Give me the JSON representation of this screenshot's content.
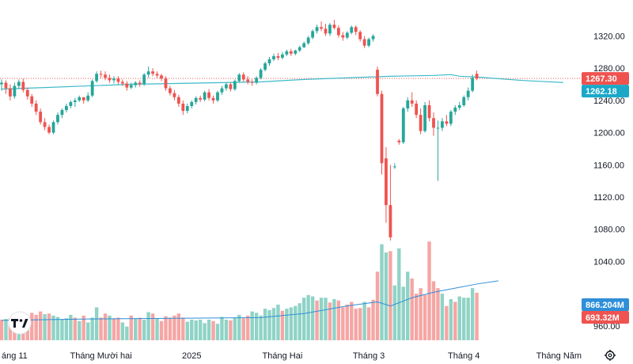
{
  "chart_data": {
    "type": "candlestick",
    "title": "",
    "grid": false,
    "y_axis": {
      "range": [
        950,
        1345
      ],
      "ticks": [
        960,
        1040,
        1080,
        1120,
        1160,
        1200,
        1240,
        1280,
        1320
      ]
    },
    "x_axis": {
      "labels": [
        {
          "index": 3,
          "text": "áng 11"
        },
        {
          "index": 23,
          "text": "Tháng Mười hai"
        },
        {
          "index": 44,
          "text": "2025"
        },
        {
          "index": 65,
          "text": "Tháng Hai"
        },
        {
          "index": 85,
          "text": "Tháng 3"
        },
        {
          "index": 107,
          "text": "Tháng 4"
        },
        {
          "index": 129,
          "text": "Tháng Năm"
        }
      ]
    },
    "price_scale": {
      "data_top": 1345,
      "data_bottom": 1065,
      "view_top": 1345,
      "view_bottom": 950
    },
    "volume_scale": {
      "max": 1500
    },
    "last_price": 1267.3,
    "moving_average_value": 1262.18,
    "volume_last": "693.32M",
    "volume_ma_last": "866.204M",
    "colors": {
      "up": "#26a69a",
      "down": "#ef5350",
      "ma": "#3cbac8",
      "vol_up": "#8fd3c6",
      "vol_down": "#f5a6a4",
      "vol_ma": "#2f8fd8"
    },
    "candles": [
      [
        1260,
        1266,
        1252,
        1262
      ],
      [
        1262,
        1265,
        1248,
        1255
      ],
      [
        1255,
        1260,
        1240,
        1245
      ],
      [
        1245,
        1262,
        1242,
        1258
      ],
      [
        1258,
        1266,
        1254,
        1263
      ],
      [
        1263,
        1267,
        1250,
        1253
      ],
      [
        1253,
        1256,
        1241,
        1245
      ],
      [
        1245,
        1248,
        1232,
        1236
      ],
      [
        1236,
        1240,
        1222,
        1226
      ],
      [
        1226,
        1230,
        1210,
        1213
      ],
      [
        1213,
        1218,
        1203,
        1207
      ],
      [
        1207,
        1210,
        1198,
        1200
      ],
      [
        1200,
        1215,
        1198,
        1213
      ],
      [
        1213,
        1225,
        1210,
        1222
      ],
      [
        1222,
        1230,
        1218,
        1228
      ],
      [
        1228,
        1236,
        1225,
        1233
      ],
      [
        1233,
        1240,
        1230,
        1238
      ],
      [
        1238,
        1243,
        1232,
        1240
      ],
      [
        1240,
        1246,
        1238,
        1244
      ],
      [
        1244,
        1244,
        1236,
        1240
      ],
      [
        1240,
        1250,
        1238,
        1246
      ],
      [
        1246,
        1266,
        1244,
        1264
      ],
      [
        1264,
        1276,
        1262,
        1273
      ],
      [
        1273,
        1277,
        1268,
        1272
      ],
      [
        1272,
        1276,
        1265,
        1268
      ],
      [
        1268,
        1272,
        1262,
        1265
      ],
      [
        1265,
        1270,
        1261,
        1267
      ],
      [
        1267,
        1270,
        1260,
        1263
      ],
      [
        1263,
        1266,
        1258,
        1261
      ],
      [
        1261,
        1264,
        1252,
        1256
      ],
      [
        1256,
        1262,
        1254,
        1259
      ],
      [
        1259,
        1264,
        1256,
        1262
      ],
      [
        1262,
        1265,
        1257,
        1260
      ],
      [
        1260,
        1274,
        1258,
        1272
      ],
      [
        1272,
        1282,
        1268,
        1276
      ],
      [
        1276,
        1280,
        1270,
        1273
      ],
      [
        1273,
        1276,
        1268,
        1271
      ],
      [
        1271,
        1273,
        1264,
        1267
      ],
      [
        1267,
        1270,
        1252,
        1255
      ],
      [
        1255,
        1258,
        1246,
        1249
      ],
      [
        1249,
        1253,
        1240,
        1244
      ],
      [
        1244,
        1247,
        1232,
        1236
      ],
      [
        1236,
        1240,
        1222,
        1227
      ],
      [
        1227,
        1236,
        1224,
        1233
      ],
      [
        1233,
        1240,
        1230,
        1238
      ],
      [
        1238,
        1245,
        1235,
        1243
      ],
      [
        1243,
        1246,
        1238,
        1241
      ],
      [
        1241,
        1252,
        1239,
        1250
      ],
      [
        1250,
        1254,
        1240,
        1243
      ],
      [
        1243,
        1246,
        1236,
        1240
      ],
      [
        1240,
        1252,
        1238,
        1250
      ],
      [
        1250,
        1258,
        1247,
        1255
      ],
      [
        1255,
        1262,
        1252,
        1260
      ],
      [
        1260,
        1262,
        1251,
        1254
      ],
      [
        1254,
        1266,
        1252,
        1264
      ],
      [
        1264,
        1274,
        1262,
        1272
      ],
      [
        1272,
        1275,
        1263,
        1266
      ],
      [
        1266,
        1270,
        1260,
        1263
      ],
      [
        1263,
        1266,
        1258,
        1262
      ],
      [
        1262,
        1270,
        1260,
        1268
      ],
      [
        1268,
        1280,
        1266,
        1278
      ],
      [
        1278,
        1288,
        1276,
        1286
      ],
      [
        1286,
        1294,
        1283,
        1291
      ],
      [
        1291,
        1298,
        1289,
        1295
      ],
      [
        1295,
        1299,
        1290,
        1293
      ],
      [
        1293,
        1300,
        1291,
        1297
      ],
      [
        1297,
        1303,
        1295,
        1301
      ],
      [
        1301,
        1304,
        1295,
        1298
      ],
      [
        1298,
        1303,
        1296,
        1302
      ],
      [
        1302,
        1308,
        1300,
        1306
      ],
      [
        1306,
        1313,
        1305,
        1311
      ],
      [
        1311,
        1320,
        1309,
        1318
      ],
      [
        1318,
        1328,
        1316,
        1326
      ],
      [
        1326,
        1334,
        1323,
        1331
      ],
      [
        1331,
        1338,
        1326,
        1329
      ],
      [
        1329,
        1335,
        1320,
        1323
      ],
      [
        1323,
        1336,
        1320,
        1334
      ],
      [
        1334,
        1340,
        1328,
        1330
      ],
      [
        1330,
        1333,
        1318,
        1321
      ],
      [
        1321,
        1325,
        1314,
        1318
      ],
      [
        1318,
        1326,
        1316,
        1324
      ],
      [
        1324,
        1333,
        1322,
        1331
      ],
      [
        1331,
        1333,
        1321,
        1325
      ],
      [
        1325,
        1327,
        1313,
        1316
      ],
      [
        1316,
        1320,
        1305,
        1308
      ],
      [
        1308,
        1318,
        1306,
        1316
      ],
      [
        1316,
        1322,
        1313,
        1320
      ],
      [
        1278,
        1282,
        1245,
        1248
      ],
      [
        1248,
        1252,
        1148,
        1162
      ],
      [
        1168,
        1182,
        1088,
        1110
      ],
      [
        1110,
        1160,
        1066,
        1070
      ],
      [
        1157,
        1162,
        1155,
        1158
      ],
      [
        1190,
        1192,
        1185,
        1188
      ],
      [
        1188,
        1232,
        1186,
        1230
      ],
      [
        1230,
        1244,
        1226,
        1240
      ],
      [
        1240,
        1250,
        1232,
        1236
      ],
      [
        1236,
        1240,
        1218,
        1222
      ],
      [
        1222,
        1230,
        1198,
        1202
      ],
      [
        1202,
        1238,
        1200,
        1234
      ],
      [
        1234,
        1240,
        1214,
        1218
      ],
      [
        1218,
        1225,
        1196,
        1206
      ],
      [
        1206,
        1215,
        1140,
        1206
      ],
      [
        1206,
        1218,
        1202,
        1214
      ],
      [
        1214,
        1222,
        1208,
        1211
      ],
      [
        1211,
        1228,
        1208,
        1226
      ],
      [
        1226,
        1234,
        1222,
        1231
      ],
      [
        1231,
        1238,
        1228,
        1234
      ],
      [
        1234,
        1246,
        1232,
        1244
      ],
      [
        1244,
        1256,
        1240,
        1252
      ],
      [
        1252,
        1272,
        1250,
        1268
      ],
      [
        1273,
        1277,
        1265,
        1267.3
      ]
    ],
    "ma_points": [
      [
        0,
        1254
      ],
      [
        10,
        1256
      ],
      [
        20,
        1258
      ],
      [
        30,
        1260
      ],
      [
        40,
        1261
      ],
      [
        50,
        1262
      ],
      [
        60,
        1263
      ],
      [
        70,
        1266
      ],
      [
        80,
        1268
      ],
      [
        90,
        1270
      ],
      [
        100,
        1271
      ],
      [
        104,
        1272
      ],
      [
        106,
        1270
      ],
      [
        110,
        1269
      ],
      [
        115,
        1267
      ],
      [
        120,
        1265
      ],
      [
        125,
        1263.5
      ],
      [
        130,
        1262.2
      ]
    ],
    "volumes": [
      [
        300,
        0
      ],
      [
        310,
        1
      ],
      [
        320,
        0
      ],
      [
        380,
        0
      ],
      [
        320,
        1
      ],
      [
        330,
        0
      ],
      [
        350,
        0
      ],
      [
        400,
        0
      ],
      [
        370,
        0
      ],
      [
        420,
        0
      ],
      [
        380,
        1
      ],
      [
        390,
        0
      ],
      [
        360,
        1
      ],
      [
        340,
        1
      ],
      [
        300,
        1
      ],
      [
        320,
        1
      ],
      [
        370,
        1
      ],
      [
        330,
        0
      ],
      [
        280,
        1
      ],
      [
        360,
        0
      ],
      [
        260,
        1
      ],
      [
        330,
        1
      ],
      [
        480,
        1
      ],
      [
        330,
        0
      ],
      [
        390,
        0
      ],
      [
        360,
        1
      ],
      [
        320,
        0
      ],
      [
        330,
        0
      ],
      [
        260,
        1
      ],
      [
        200,
        1
      ],
      [
        360,
        0
      ],
      [
        320,
        1
      ],
      [
        330,
        0
      ],
      [
        300,
        1
      ],
      [
        410,
        1
      ],
      [
        390,
        0
      ],
      [
        320,
        1
      ],
      [
        280,
        0
      ],
      [
        350,
        0
      ],
      [
        330,
        0
      ],
      [
        360,
        0
      ],
      [
        390,
        0
      ],
      [
        330,
        0
      ],
      [
        270,
        1
      ],
      [
        300,
        1
      ],
      [
        290,
        1
      ],
      [
        300,
        1
      ],
      [
        250,
        1
      ],
      [
        300,
        1
      ],
      [
        280,
        0
      ],
      [
        240,
        1
      ],
      [
        340,
        1
      ],
      [
        300,
        1
      ],
      [
        290,
        0
      ],
      [
        330,
        1
      ],
      [
        370,
        1
      ],
      [
        320,
        0
      ],
      [
        360,
        0
      ],
      [
        420,
        1
      ],
      [
        400,
        1
      ],
      [
        360,
        1
      ],
      [
        460,
        1
      ],
      [
        440,
        1
      ],
      [
        470,
        1
      ],
      [
        520,
        1
      ],
      [
        430,
        0
      ],
      [
        460,
        1
      ],
      [
        480,
        1
      ],
      [
        500,
        1
      ],
      [
        540,
        1
      ],
      [
        620,
        1
      ],
      [
        660,
        1
      ],
      [
        640,
        1
      ],
      [
        580,
        0
      ],
      [
        620,
        1
      ],
      [
        620,
        1
      ],
      [
        550,
        0
      ],
      [
        600,
        1
      ],
      [
        580,
        0
      ],
      [
        480,
        0
      ],
      [
        520,
        0
      ],
      [
        560,
        0
      ],
      [
        460,
        0
      ],
      [
        470,
        0
      ],
      [
        560,
        1
      ],
      [
        480,
        0
      ],
      [
        590,
        0
      ],
      [
        1000,
        0
      ],
      [
        1400,
        1
      ],
      [
        1280,
        1
      ],
      [
        1300,
        0
      ],
      [
        800,
        1
      ],
      [
        1340,
        1
      ],
      [
        780,
        1
      ],
      [
        1000,
        1
      ],
      [
        900,
        0
      ],
      [
        680,
        0
      ],
      [
        760,
        0
      ],
      [
        660,
        0
      ],
      [
        1440,
        0
      ],
      [
        860,
        0
      ],
      [
        760,
        0
      ],
      [
        680,
        1
      ],
      [
        500,
        0
      ],
      [
        600,
        1
      ],
      [
        560,
        0
      ],
      [
        640,
        1
      ],
      [
        620,
        1
      ],
      [
        620,
        1
      ],
      [
        760,
        1
      ],
      [
        693,
        0
      ]
    ],
    "vol_ma_points": [
      [
        0,
        290
      ],
      [
        20,
        310
      ],
      [
        40,
        320
      ],
      [
        60,
        330
      ],
      [
        70,
        390
      ],
      [
        80,
        500
      ],
      [
        87,
        560
      ],
      [
        90,
        500
      ],
      [
        95,
        620
      ],
      [
        100,
        700
      ],
      [
        105,
        760
      ],
      [
        110,
        820
      ],
      [
        115,
        866.2
      ]
    ]
  }
}
